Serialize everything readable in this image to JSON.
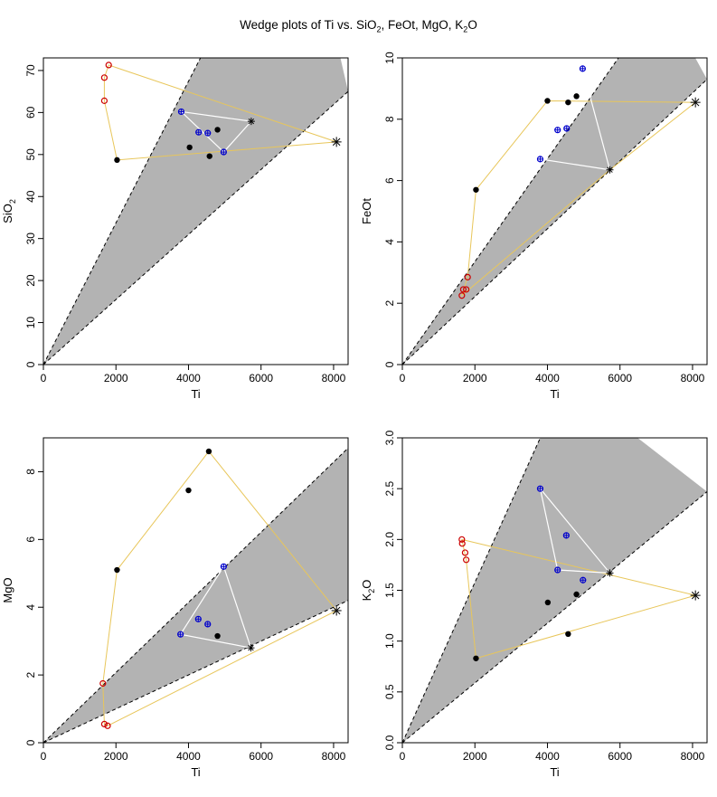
{
  "figure": {
    "title_parts": [
      "Wedge plots of Ti vs. SiO",
      "2",
      ", FeOt, MgO, K",
      "2",
      "O"
    ]
  },
  "colors": {
    "wedge_fill": "#b3b3b3",
    "wedge_edge": "#000000",
    "hull_outer": "#e8c65a",
    "hull_inner": "#ffffff",
    "group_red": "#cc0000",
    "group_blue": "#0000cc",
    "group_black": "#000000"
  },
  "chart_data": [
    {
      "id": "sio2",
      "type": "scatter",
      "xlabel": "Ti",
      "ylabel_parts": [
        "SiO",
        "2",
        ""
      ],
      "xlim": [
        0,
        8400
      ],
      "ylim": [
        0,
        73
      ],
      "xticks": [
        0,
        2000,
        4000,
        6000,
        8000
      ],
      "yticks": [
        0,
        10,
        20,
        30,
        40,
        50,
        60,
        70
      ],
      "wedge": {
        "origin": [
          0,
          0
        ],
        "upper_end": [
          7000,
          118
        ],
        "lower_end": [
          8400,
          65
        ]
      },
      "hull_outer": [
        [
          1800,
          71.3
        ],
        [
          8080,
          53
        ],
        [
          2030,
          48.7
        ],
        [
          1680,
          62.8
        ],
        [
          1680,
          68.3
        ]
      ],
      "hull_inner": [
        [
          3800,
          60.2
        ],
        [
          5730,
          57.9
        ],
        [
          4970,
          50.6
        ]
      ],
      "points": [
        {
          "x": 1800,
          "y": 71.3,
          "group": "red"
        },
        {
          "x": 1680,
          "y": 68.3,
          "group": "red"
        },
        {
          "x": 1680,
          "y": 62.8,
          "group": "red"
        },
        {
          "x": 3800,
          "y": 60.2,
          "group": "blue"
        },
        {
          "x": 4280,
          "y": 55.3,
          "group": "blue"
        },
        {
          "x": 4530,
          "y": 55.1,
          "group": "blue"
        },
        {
          "x": 4970,
          "y": 50.6,
          "group": "blue"
        },
        {
          "x": 2030,
          "y": 48.7,
          "group": "black"
        },
        {
          "x": 4030,
          "y": 51.7,
          "group": "black"
        },
        {
          "x": 4800,
          "y": 55.9,
          "group": "black"
        },
        {
          "x": 4580,
          "y": 49.6,
          "group": "black"
        },
        {
          "x": 5730,
          "y": 57.9,
          "group": "star_small"
        },
        {
          "x": 8080,
          "y": 53,
          "group": "star_large"
        }
      ]
    },
    {
      "id": "feot",
      "type": "scatter",
      "xlabel": "Ti",
      "ylabel_parts": [
        "FeOt",
        "",
        ""
      ],
      "xlim": [
        0,
        8400
      ],
      "ylim": [
        0,
        10
      ],
      "xticks": [
        0,
        2000,
        4000,
        6000,
        8000
      ],
      "yticks": [
        0,
        2,
        4,
        6,
        8,
        10
      ],
      "wedge": {
        "origin": [
          0,
          0
        ],
        "upper_end": [
          7150,
          12
        ],
        "lower_end": [
          8400,
          9.3
        ]
      },
      "hull_outer": [
        [
          1640,
          2.25
        ],
        [
          1800,
          2.85
        ],
        [
          2030,
          5.7
        ],
        [
          4000,
          8.6
        ],
        [
          8080,
          8.55
        ],
        [
          5720,
          6.35
        ]
      ],
      "hull_inner": [
        [
          4970,
          9.65
        ],
        [
          5720,
          6.35
        ],
        [
          3800,
          6.7
        ]
      ],
      "points": [
        {
          "x": 1640,
          "y": 2.25,
          "group": "red"
        },
        {
          "x": 1680,
          "y": 2.45,
          "group": "red"
        },
        {
          "x": 1760,
          "y": 2.45,
          "group": "red"
        },
        {
          "x": 1800,
          "y": 2.85,
          "group": "red"
        },
        {
          "x": 4970,
          "y": 9.65,
          "group": "blue"
        },
        {
          "x": 4280,
          "y": 7.65,
          "group": "blue"
        },
        {
          "x": 4530,
          "y": 7.7,
          "group": "blue"
        },
        {
          "x": 3800,
          "y": 6.7,
          "group": "blue"
        },
        {
          "x": 2030,
          "y": 5.7,
          "group": "black"
        },
        {
          "x": 4000,
          "y": 8.6,
          "group": "black"
        },
        {
          "x": 4570,
          "y": 8.55,
          "group": "black"
        },
        {
          "x": 4800,
          "y": 8.75,
          "group": "black"
        },
        {
          "x": 5720,
          "y": 6.35,
          "group": "star_small"
        },
        {
          "x": 8080,
          "y": 8.55,
          "group": "star_large"
        }
      ]
    },
    {
      "id": "mgo",
      "type": "scatter",
      "xlabel": "Ti",
      "ylabel_parts": [
        "MgO",
        "",
        ""
      ],
      "xlim": [
        0,
        8400
      ],
      "ylim": [
        0,
        9
      ],
      "xticks": [
        0,
        2000,
        4000,
        6000,
        8000
      ],
      "yticks": [
        0,
        2,
        4,
        6,
        8
      ],
      "wedge": {
        "origin": [
          0,
          0
        ],
        "upper_end": [
          8400,
          8.7
        ],
        "lower_end": [
          8400,
          4.2
        ]
      },
      "hull_outer": [
        [
          1640,
          1.75
        ],
        [
          2030,
          5.1
        ],
        [
          4560,
          8.6
        ],
        [
          8080,
          3.9
        ],
        [
          1770,
          0.5
        ],
        [
          1680,
          0.55
        ]
      ],
      "hull_inner": [
        [
          4970,
          5.2
        ],
        [
          5720,
          2.8
        ],
        [
          3780,
          3.2
        ]
      ],
      "points": [
        {
          "x": 1640,
          "y": 1.75,
          "group": "red"
        },
        {
          "x": 1680,
          "y": 0.55,
          "group": "red"
        },
        {
          "x": 1770,
          "y": 0.5,
          "group": "red"
        },
        {
          "x": 4970,
          "y": 5.2,
          "group": "blue"
        },
        {
          "x": 4270,
          "y": 3.65,
          "group": "blue"
        },
        {
          "x": 4530,
          "y": 3.5,
          "group": "blue"
        },
        {
          "x": 3780,
          "y": 3.2,
          "group": "blue"
        },
        {
          "x": 2030,
          "y": 5.1,
          "group": "black"
        },
        {
          "x": 4000,
          "y": 7.45,
          "group": "black"
        },
        {
          "x": 4560,
          "y": 8.6,
          "group": "black"
        },
        {
          "x": 4800,
          "y": 3.15,
          "group": "black"
        },
        {
          "x": 5720,
          "y": 2.8,
          "group": "star_small"
        },
        {
          "x": 8080,
          "y": 3.9,
          "group": "star_large"
        }
      ]
    },
    {
      "id": "k2o",
      "type": "scatter",
      "xlabel": "Ti",
      "ylabel_parts": [
        "K",
        "2",
        "O"
      ],
      "xlim": [
        0,
        8400
      ],
      "ylim": [
        0,
        3
      ],
      "xticks": [
        0,
        2000,
        4000,
        6000,
        8000
      ],
      "yticks": [
        0.0,
        0.5,
        1.0,
        1.5,
        2.0,
        2.5,
        3.0
      ],
      "ytick_labels": [
        "0.0",
        "0.5",
        "1.0",
        "1.5",
        "2.0",
        "2.5",
        "3.0"
      ],
      "wedge": {
        "origin": [
          0,
          0
        ],
        "upper_end": [
          4500,
          3.55
        ],
        "lower_end": [
          8400,
          2.47
        ]
      },
      "hull_outer": [
        [
          1640,
          2.0
        ],
        [
          8080,
          1.45
        ],
        [
          2030,
          0.83
        ],
        [
          1760,
          1.8
        ]
      ],
      "hull_inner": [
        [
          3800,
          2.5
        ],
        [
          5720,
          1.67
        ],
        [
          4280,
          1.7
        ]
      ],
      "points": [
        {
          "x": 1640,
          "y": 2.0,
          "group": "red"
        },
        {
          "x": 1650,
          "y": 1.96,
          "group": "red"
        },
        {
          "x": 1730,
          "y": 1.87,
          "group": "red"
        },
        {
          "x": 1760,
          "y": 1.8,
          "group": "red"
        },
        {
          "x": 3800,
          "y": 2.5,
          "group": "blue"
        },
        {
          "x": 4520,
          "y": 2.04,
          "group": "blue"
        },
        {
          "x": 4280,
          "y": 1.7,
          "group": "blue"
        },
        {
          "x": 4980,
          "y": 1.6,
          "group": "blue"
        },
        {
          "x": 2030,
          "y": 0.83,
          "group": "black"
        },
        {
          "x": 4010,
          "y": 1.38,
          "group": "black"
        },
        {
          "x": 4800,
          "y": 1.46,
          "group": "black"
        },
        {
          "x": 4570,
          "y": 1.07,
          "group": "black"
        },
        {
          "x": 5720,
          "y": 1.67,
          "group": "star_small"
        },
        {
          "x": 8080,
          "y": 1.45,
          "group": "star_large"
        }
      ]
    }
  ]
}
